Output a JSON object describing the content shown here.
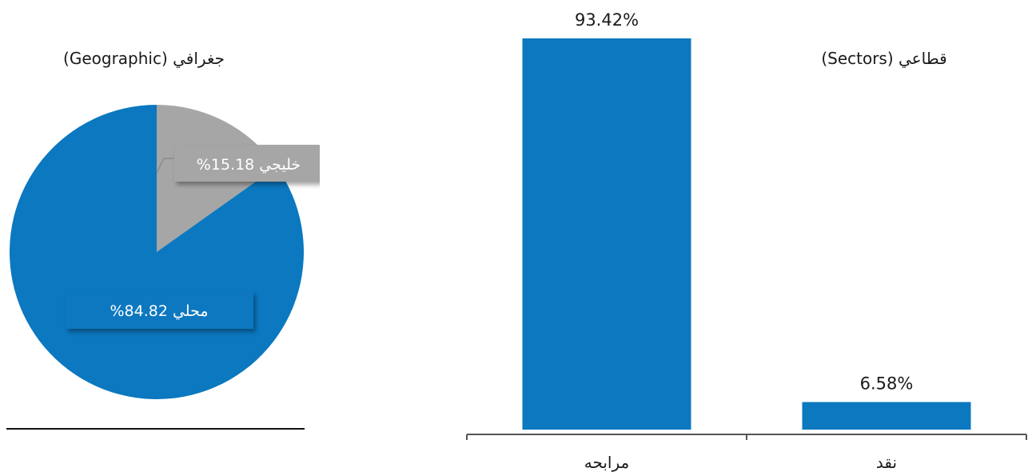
{
  "chart_data": [
    {
      "type": "pie",
      "title": "جغرافي (Geographic)",
      "slices": [
        {
          "label": "خليجي",
          "display": "خليجي 15.18%",
          "value": 15.18,
          "color": "#a6a6a6"
        },
        {
          "label": "محلي",
          "display": "محلي   84.82%",
          "value": 84.82,
          "color": "#0b78c0"
        }
      ]
    },
    {
      "type": "bar",
      "title": "قطاعي (Sectors)",
      "categories": [
        "مرابحه",
        "نقد"
      ],
      "values": [
        93.42,
        6.58
      ],
      "value_labels": [
        "93.42%",
        "6.58%"
      ],
      "ylim": [
        0,
        100
      ],
      "color": "#0b78c0",
      "grid": false
    }
  ]
}
